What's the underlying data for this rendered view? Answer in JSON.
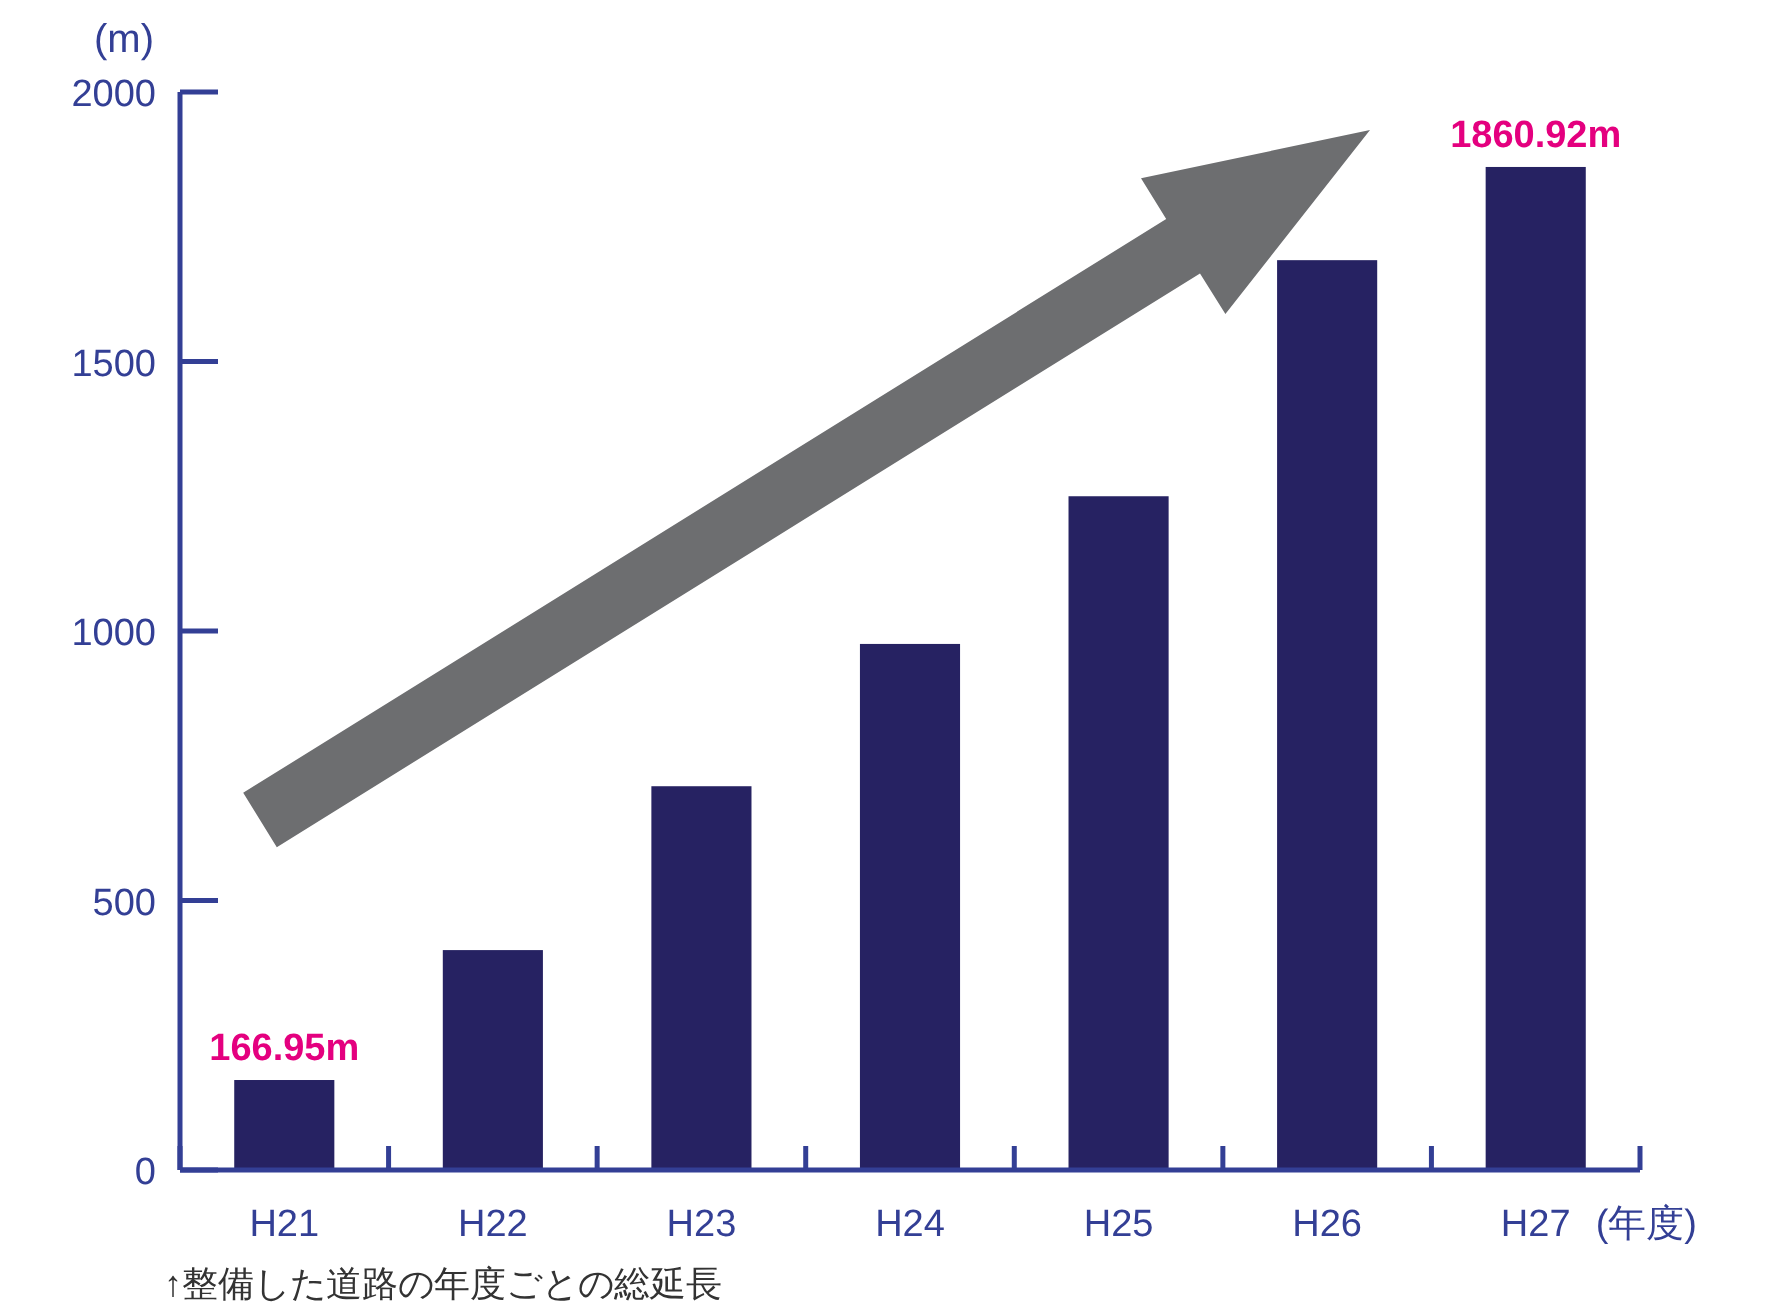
{
  "chart_data": {
    "type": "bar",
    "ylabel": "(m)",
    "xlabel": "(年度)",
    "categories": [
      "H21",
      "H22",
      "H23",
      "H24",
      "H25",
      "H26",
      "H27"
    ],
    "values": [
      166.95,
      408,
      712,
      976,
      1250,
      1688,
      1860.92
    ],
    "value_labels": [
      "166.95m",
      null,
      null,
      null,
      null,
      null,
      "1860.92m"
    ],
    "color": "#262262",
    "ylim": [
      0,
      2000
    ],
    "yticks": [
      0,
      500,
      1000,
      1500,
      2000
    ],
    "grid": false,
    "annotations": [
      "↑整備した道路の年度ごとの総延長"
    ]
  }
}
